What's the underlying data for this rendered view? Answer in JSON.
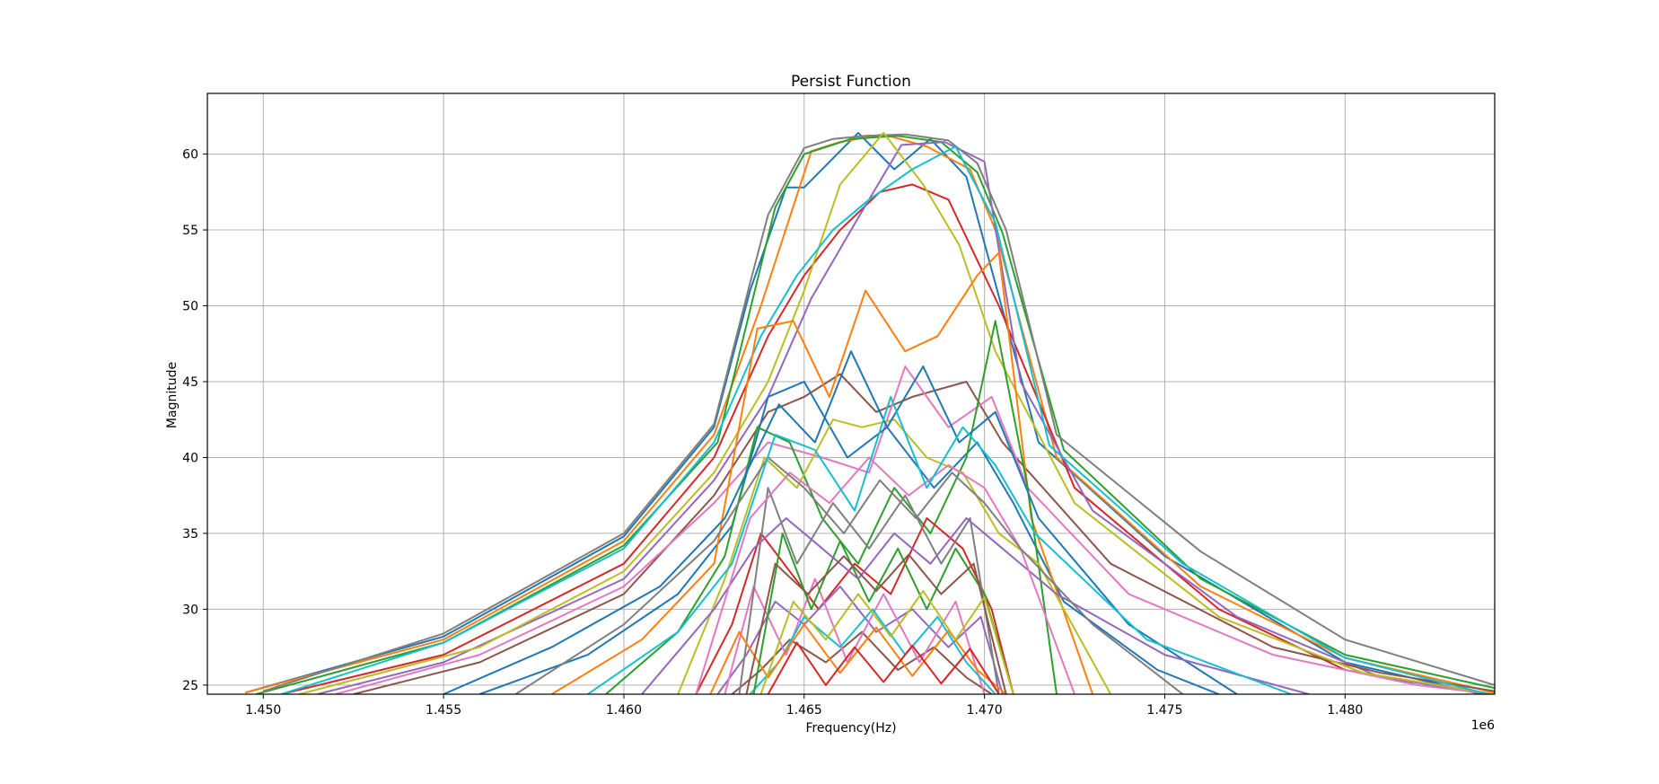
{
  "chart_data": {
    "type": "line",
    "title": "Persist Function",
    "xlabel": "Frequency(Hz)",
    "ylabel": "Magnitude",
    "x_offset_label": "1e6",
    "xlim": [
      1448450,
      1484150
    ],
    "ylim": [
      24.4,
      64.0
    ],
    "grid": true,
    "x_ticks": [
      1450000,
      1455000,
      1460000,
      1465000,
      1470000,
      1475000,
      1480000
    ],
    "x_tick_labels": [
      "1.450",
      "1.455",
      "1.460",
      "1.465",
      "1.470",
      "1.475",
      "1.480"
    ],
    "y_ticks": [
      25,
      30,
      35,
      40,
      45,
      50,
      55,
      60
    ],
    "y_tick_labels": [
      "25",
      "30",
      "35",
      "40",
      "45",
      "50",
      "55",
      "60"
    ],
    "colors": [
      "#1f77b4",
      "#ff7f0e",
      "#2ca02c",
      "#d62728",
      "#9467bd",
      "#8c564b",
      "#e377c2",
      "#7f7f7f",
      "#bcbd22",
      "#17becf"
    ],
    "series": [
      {
        "x": [
          1449500,
          1455000,
          1460000,
          1462500,
          1463500,
          1464500,
          1465000,
          1466500,
          1467500,
          1468500,
          1469500,
          1471500,
          1475000,
          1480000,
          1484150
        ],
        "values": [
          24.5,
          28.2,
          34.8,
          42.0,
          51.0,
          57.8,
          57.8,
          61.4,
          59.0,
          61.0,
          58.5,
          41.0,
          33.5,
          26.5,
          24.2
        ]
      },
      {
        "x": [
          1449500,
          1455000,
          1460000,
          1462500,
          1463800,
          1465200,
          1466000,
          1467200,
          1468400,
          1469600,
          1470300,
          1472000,
          1476000,
          1480000,
          1484150
        ],
        "values": [
          24.5,
          28.0,
          34.5,
          41.5,
          50.0,
          60.2,
          60.8,
          61.3,
          60.5,
          59.0,
          55.0,
          40.0,
          31.5,
          26.8,
          24.5
        ]
      },
      {
        "x": [
          1449800,
          1455000,
          1460000,
          1462600,
          1464200,
          1465000,
          1466300,
          1467600,
          1468800,
          1469800,
          1470500,
          1472200,
          1476000,
          1480000,
          1484150
        ],
        "values": [
          24.4,
          27.8,
          34.2,
          41.0,
          56.5,
          60.0,
          61.0,
          61.2,
          60.8,
          58.8,
          54.8,
          40.5,
          32.0,
          27.0,
          24.8
        ]
      },
      {
        "x": [
          1450500,
          1455000,
          1460000,
          1462500,
          1464000,
          1465000,
          1466000,
          1467100,
          1468000,
          1469000,
          1470400,
          1472500,
          1476500,
          1480000,
          1484150
        ],
        "values": [
          24.4,
          27.0,
          33.0,
          40.0,
          48.0,
          52.0,
          55.0,
          57.5,
          58.0,
          57.0,
          50.0,
          38.0,
          30.0,
          26.0,
          24.3
        ]
      },
      {
        "x": [
          1451500,
          1455000,
          1460000,
          1462500,
          1464000,
          1465200,
          1466500,
          1467700,
          1468900,
          1470000,
          1471000,
          1473000,
          1477000,
          1481000,
          1484150
        ],
        "values": [
          24.4,
          26.5,
          32.0,
          38.5,
          44.0,
          50.5,
          55.8,
          60.6,
          60.8,
          59.5,
          45.0,
          36.5,
          29.5,
          25.5,
          24.4
        ]
      },
      {
        "x": [
          1452500,
          1456000,
          1460000,
          1462500,
          1464000,
          1465000,
          1466000,
          1467000,
          1468000,
          1469500,
          1470500,
          1473500,
          1478000,
          1481000,
          1484150
        ],
        "values": [
          24.4,
          26.5,
          31.0,
          37.5,
          43.0,
          44.0,
          45.5,
          43.0,
          44.0,
          45.0,
          41.0,
          33.0,
          27.5,
          25.8,
          24.6
        ]
      },
      {
        "x": [
          1452000,
          1456000,
          1460000,
          1462500,
          1464000,
          1465500,
          1466800,
          1467800,
          1469000,
          1470200,
          1471200,
          1474000,
          1478000,
          1482000,
          1484150
        ],
        "values": [
          24.4,
          27.0,
          31.5,
          37.0,
          41.0,
          40.0,
          39.0,
          46.0,
          42.0,
          44.0,
          38.0,
          31.0,
          27.0,
          25.0,
          24.4
        ]
      },
      {
        "x": [
          1450000,
          1455000,
          1460000,
          1462500,
          1463500,
          1464000,
          1465000,
          1465800,
          1466700,
          1467800,
          1469000,
          1469800,
          1470600,
          1472000,
          1476000,
          1480000,
          1484150
        ],
        "values": [
          24.6,
          28.4,
          35.0,
          42.2,
          51.5,
          56.0,
          60.4,
          61.0,
          61.2,
          61.3,
          60.9,
          59.4,
          55.0,
          41.5,
          33.8,
          28.0,
          25.0
        ]
      },
      {
        "x": [
          1451000,
          1456000,
          1460000,
          1462500,
          1464000,
          1465000,
          1466000,
          1467200,
          1468300,
          1469300,
          1470300,
          1472500,
          1476500,
          1480500,
          1484150
        ],
        "values": [
          24.4,
          27.5,
          32.5,
          39.0,
          45.0,
          51.0,
          58.0,
          61.4,
          58.0,
          54.0,
          47.0,
          37.0,
          29.5,
          25.8,
          24.4
        ]
      },
      {
        "x": [
          1450500,
          1455000,
          1460000,
          1462500,
          1463800,
          1464800,
          1465800,
          1466800,
          1468000,
          1469200,
          1470300,
          1471800,
          1475500,
          1480000,
          1484150
        ],
        "values": [
          24.4,
          27.8,
          34.0,
          41.0,
          48.0,
          52.0,
          55.0,
          57.0,
          59.0,
          60.5,
          55.5,
          40.8,
          33.0,
          26.8,
          24.3
        ]
      },
      {
        "x": [
          1456000,
          1459000,
          1461500,
          1463000,
          1464000,
          1465000,
          1466200,
          1467300,
          1468600,
          1469800,
          1470800,
          1472200,
          1474800,
          1476500
        ],
        "values": [
          24.4,
          27.0,
          31.0,
          35.5,
          44.0,
          45.0,
          40.0,
          42.0,
          38.0,
          41.0,
          37.0,
          30.5,
          26.0,
          24.4
        ]
      },
      {
        "x": [
          1458000,
          1460500,
          1462500,
          1463700,
          1464700,
          1465700,
          1466700,
          1467800,
          1468700,
          1469800,
          1470400,
          1471300,
          1473000
        ],
        "values": [
          24.4,
          28.0,
          33.0,
          48.5,
          49.0,
          44.0,
          51.0,
          47.0,
          48.0,
          52.0,
          53.5,
          36.0,
          24.4
        ]
      },
      {
        "x": [
          1459500,
          1461500,
          1462800,
          1463700,
          1464600,
          1465500,
          1466500,
          1467500,
          1468500,
          1469500,
          1470300,
          1471200,
          1472000
        ],
        "values": [
          24.4,
          28.5,
          33.5,
          42.0,
          41.0,
          36.0,
          33.0,
          38.0,
          35.0,
          40.0,
          49.0,
          38.0,
          24.4
        ]
      },
      {
        "x": [
          1462000,
          1463000,
          1463800,
          1464600,
          1465400,
          1466400,
          1467400,
          1468400,
          1469400,
          1470200,
          1470800
        ],
        "values": [
          24.4,
          29.0,
          35.0,
          32.5,
          30.0,
          33.0,
          31.0,
          36.0,
          34.0,
          30.0,
          24.4
        ]
      },
      {
        "x": [
          1462600,
          1463400,
          1464200,
          1465000,
          1466000,
          1467000,
          1468000,
          1469000,
          1469900,
          1470500
        ],
        "values": [
          24.4,
          27.0,
          30.5,
          29.0,
          31.5,
          28.5,
          30.0,
          27.5,
          29.5,
          24.4
        ]
      },
      {
        "x": [
          1463000,
          1463800,
          1464600,
          1465600,
          1466600,
          1467600,
          1468600,
          1469500,
          1470200
        ],
        "values": [
          24.4,
          26.0,
          28.0,
          26.5,
          28.5,
          26.0,
          27.5,
          25.5,
          24.4
        ]
      },
      {
        "x": [
          1462800,
          1463600,
          1464500,
          1465300,
          1466200,
          1467200,
          1468200,
          1469200,
          1470000
        ],
        "values": [
          24.4,
          31.5,
          27.0,
          32.0,
          26.5,
          31.0,
          26.5,
          30.5,
          24.4
        ]
      },
      {
        "x": [
          1463200,
          1464000,
          1464800,
          1465800,
          1466800,
          1467800,
          1468800,
          1469600,
          1470400
        ],
        "values": [
          24.4,
          38.0,
          33.0,
          37.0,
          34.0,
          37.5,
          33.0,
          36.0,
          24.4
        ]
      },
      {
        "x": [
          1461500,
          1462800,
          1463900,
          1464800,
          1465800,
          1466600,
          1467500,
          1468400,
          1469400,
          1470400,
          1471500,
          1473500
        ],
        "values": [
          24.4,
          32.0,
          40.0,
          38.0,
          42.5,
          42.0,
          42.5,
          40.0,
          39.0,
          35.0,
          33.0,
          24.4
        ]
      },
      {
        "x": [
          1463500,
          1464300,
          1465000,
          1466000,
          1466900,
          1467800,
          1468700,
          1469500,
          1470300
        ],
        "values": [
          24.4,
          26.5,
          29.5,
          27.5,
          30.0,
          27.0,
          29.5,
          26.5,
          24.4
        ]
      },
      {
        "x": [
          1455000,
          1458000,
          1461000,
          1462800,
          1464300,
          1465300,
          1466300,
          1467300,
          1468300,
          1469300,
          1470300,
          1471500,
          1474000,
          1477000
        ],
        "values": [
          24.4,
          27.5,
          31.5,
          36.0,
          43.5,
          41.0,
          47.0,
          42.0,
          46.0,
          41.0,
          43.0,
          36.0,
          29.0,
          24.4
        ]
      },
      {
        "x": [
          1462400,
          1463200,
          1464000,
          1465000,
          1466000,
          1467000,
          1468000,
          1469000,
          1469800,
          1470600
        ],
        "values": [
          24.4,
          28.5,
          25.5,
          29.0,
          25.8,
          28.8,
          25.6,
          28.6,
          26.0,
          24.4
        ]
      },
      {
        "x": [
          1463600,
          1464400,
          1465200,
          1466000,
          1466800,
          1467600,
          1468400,
          1469200,
          1470000,
          1470800
        ],
        "values": [
          24.4,
          35.0,
          30.0,
          34.5,
          30.5,
          34.0,
          30.0,
          34.0,
          31.0,
          24.4
        ]
      },
      {
        "x": [
          1464000,
          1464800,
          1465600,
          1466400,
          1467200,
          1468000,
          1468800,
          1469600,
          1470400
        ],
        "values": [
          24.4,
          27.8,
          25.0,
          27.5,
          25.2,
          27.6,
          25.1,
          27.4,
          24.4
        ]
      },
      {
        "x": [
          1460500,
          1462500,
          1463600,
          1464500,
          1465500,
          1466500,
          1467500,
          1468500,
          1469500,
          1470500,
          1472000,
          1475000,
          1479000
        ],
        "values": [
          24.4,
          30.0,
          34.0,
          36.0,
          34.0,
          32.0,
          35.0,
          33.0,
          36.0,
          34.0,
          31.0,
          27.0,
          24.4
        ]
      },
      {
        "x": [
          1463400,
          1464200,
          1465100,
          1466100,
          1467000,
          1467900,
          1468800,
          1469700,
          1470600
        ],
        "values": [
          24.4,
          33.0,
          31.0,
          33.5,
          31.2,
          33.6,
          31.0,
          33.0,
          24.4
        ]
      },
      {
        "x": [
          1462000,
          1463500,
          1464600,
          1465700,
          1466800,
          1467900,
          1469000,
          1470000,
          1471000,
          1472500
        ],
        "values": [
          24.4,
          36.0,
          39.0,
          37.0,
          40.0,
          37.5,
          39.5,
          38.0,
          34.0,
          24.4
        ]
      },
      {
        "x": [
          1457000,
          1460000,
          1462500,
          1464000,
          1465000,
          1466100,
          1467100,
          1468100,
          1469100,
          1470000,
          1471000,
          1473000,
          1475500
        ],
        "values": [
          24.4,
          29.0,
          34.5,
          40.0,
          38.0,
          35.0,
          38.5,
          36.0,
          39.0,
          37.0,
          34.0,
          29.0,
          24.4
        ]
      },
      {
        "x": [
          1463800,
          1464700,
          1465600,
          1466500,
          1467400,
          1468300,
          1469200,
          1470000,
          1470800
        ],
        "values": [
          24.4,
          30.5,
          28.0,
          31.0,
          28.2,
          31.2,
          28.0,
          30.8,
          24.4
        ]
      },
      {
        "x": [
          1459000,
          1461500,
          1463000,
          1464200,
          1465300,
          1466400,
          1467400,
          1468400,
          1469400,
          1470300,
          1471400,
          1474500,
          1478500
        ],
        "values": [
          24.4,
          28.5,
          33.0,
          41.5,
          40.5,
          36.5,
          44.0,
          38.0,
          42.0,
          39.5,
          35.0,
          28.0,
          24.4
        ]
      }
    ]
  }
}
